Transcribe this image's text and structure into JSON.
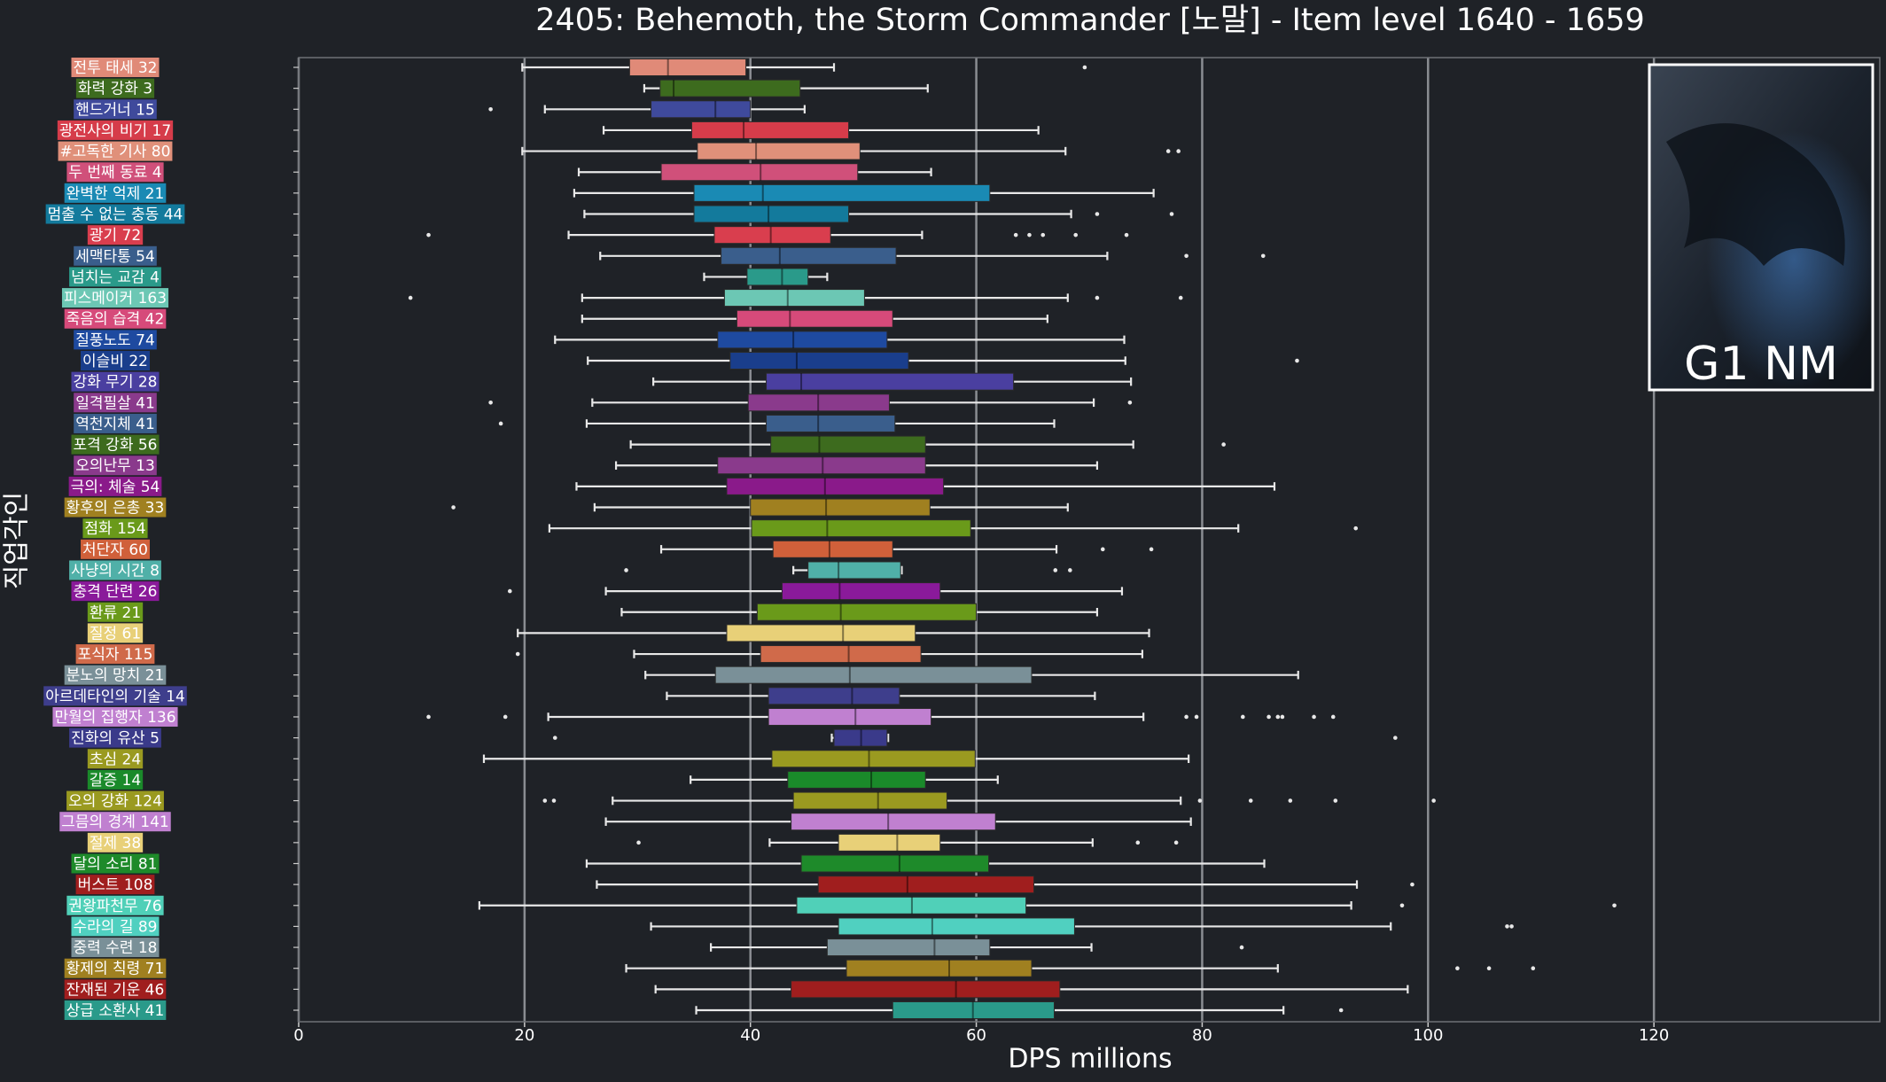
{
  "chart_data": {
    "type": "box",
    "title": "2405: Behemoth, the Storm Commander [노말] - Item level 1640 - 1659",
    "xlabel": "DPS millions",
    "ylabel": "직업각인",
    "badge": "G1 NM",
    "xlim": [
      0,
      140
    ],
    "xticks": [
      0,
      20,
      40,
      60,
      80,
      100,
      120
    ],
    "grid": true,
    "boxes": [
      {
        "name": "전투 태세 32",
        "color": "#e08a78",
        "whislo": 19.8,
        "q1": 29.3,
        "med": 32.7,
        "q3": 39.6,
        "whishi": 47.4,
        "fliers": [
          69.6
        ]
      },
      {
        "name": "화력 강화 3",
        "color": "#3d6b1e",
        "whislo": 30.6,
        "q1": 32.0,
        "med": 33.2,
        "q3": 44.4,
        "whishi": 55.7,
        "fliers": []
      },
      {
        "name": "핸드거너 15",
        "color": "#3f4a9c",
        "whislo": 21.8,
        "q1": 31.2,
        "med": 36.9,
        "q3": 40.0,
        "whishi": 44.8,
        "fliers": [
          17.0
        ]
      },
      {
        "name": "광전사의 비기 17",
        "color": "#d63c4a",
        "whislo": 27.0,
        "q1": 34.8,
        "med": 39.4,
        "q3": 48.7,
        "whishi": 65.5,
        "fliers": []
      },
      {
        "name": "#고독한 기사 80",
        "color": "#e0907a",
        "whislo": 19.8,
        "q1": 35.3,
        "med": 40.5,
        "q3": 49.7,
        "whishi": 67.9,
        "fliers": [
          77.0,
          77.9
        ]
      },
      {
        "name": "두 번째 동료 4",
        "color": "#d0507a",
        "whislo": 24.8,
        "q1": 32.1,
        "med": 40.9,
        "q3": 49.5,
        "whishi": 56.0,
        "fliers": []
      },
      {
        "name": "완벽한 억제 21",
        "color": "#1a8ab4",
        "whislo": 24.4,
        "q1": 35.0,
        "med": 41.1,
        "q3": 61.2,
        "whishi": 75.7,
        "fliers": []
      },
      {
        "name": "멈출 수 없는 충동 44",
        "color": "#137a9c",
        "whislo": 25.3,
        "q1": 35.0,
        "med": 41.6,
        "q3": 48.7,
        "whishi": 68.4,
        "fliers": [
          70.7,
          77.3
        ]
      },
      {
        "name": "광기 72",
        "color": "#d93e4e",
        "whislo": 23.9,
        "q1": 36.8,
        "med": 41.8,
        "q3": 47.1,
        "whishi": 55.2,
        "fliers": [
          11.5,
          63.5,
          64.7,
          65.9,
          68.8,
          73.3
        ]
      },
      {
        "name": "세맥타통 54",
        "color": "#3a5e8c",
        "whislo": 26.7,
        "q1": 37.4,
        "med": 42.6,
        "q3": 52.9,
        "whishi": 71.6,
        "fliers": [
          78.6,
          85.4
        ]
      },
      {
        "name": "넘치는 교감 4",
        "color": "#2a9a8a",
        "whislo": 35.9,
        "q1": 39.7,
        "med": 42.8,
        "q3": 45.1,
        "whishi": 46.8,
        "fliers": []
      },
      {
        "name": "피스메이커 163",
        "color": "#6cc7b4",
        "whislo": 25.1,
        "q1": 37.7,
        "med": 43.3,
        "q3": 50.1,
        "whishi": 68.1,
        "fliers": [
          9.9,
          70.7,
          78.1
        ]
      },
      {
        "name": "죽음의 습격 42",
        "color": "#d64a7a",
        "whislo": 25.1,
        "q1": 38.8,
        "med": 43.5,
        "q3": 52.6,
        "whishi": 66.3,
        "fliers": []
      },
      {
        "name": "질풍노도 74",
        "color": "#1e4aa0",
        "whislo": 22.7,
        "q1": 37.1,
        "med": 43.8,
        "q3": 52.1,
        "whishi": 73.1,
        "fliers": []
      },
      {
        "name": "이슬비 22",
        "color": "#1a3e8c",
        "whislo": 25.6,
        "q1": 38.2,
        "med": 44.1,
        "q3": 54.0,
        "whishi": 73.2,
        "fliers": [
          88.4
        ]
      },
      {
        "name": "강화 무기 28",
        "color": "#4a3fa0",
        "whislo": 31.4,
        "q1": 41.4,
        "med": 44.5,
        "q3": 63.3,
        "whishi": 73.7,
        "fliers": []
      },
      {
        "name": "일격필살 41",
        "color": "#8a3a8c",
        "whislo": 26.0,
        "q1": 39.8,
        "med": 46.0,
        "q3": 52.3,
        "whishi": 70.4,
        "fliers": [
          17.0,
          73.6
        ]
      },
      {
        "name": "역천지체 41",
        "color": "#3a5e8c",
        "whislo": 25.5,
        "q1": 41.4,
        "med": 46.0,
        "q3": 52.8,
        "whishi": 66.9,
        "fliers": [
          17.9
        ]
      },
      {
        "name": "포격 강화 56",
        "color": "#3d6b1e",
        "whislo": 29.4,
        "q1": 41.8,
        "med": 46.1,
        "q3": 55.5,
        "whishi": 73.9,
        "fliers": [
          81.9
        ]
      },
      {
        "name": "오의난무 13",
        "color": "#8a3a8c",
        "whislo": 28.1,
        "q1": 37.1,
        "med": 46.4,
        "q3": 55.5,
        "whishi": 70.7,
        "fliers": []
      },
      {
        "name": "극의: 체술 54",
        "color": "#8a1a8a",
        "whislo": 24.6,
        "q1": 37.9,
        "med": 46.6,
        "q3": 57.1,
        "whishi": 86.4,
        "fliers": []
      },
      {
        "name": "황후의 은총 33",
        "color": "#a08020",
        "whislo": 26.2,
        "q1": 40.0,
        "med": 46.7,
        "q3": 55.9,
        "whishi": 68.1,
        "fliers": [
          13.7
        ]
      },
      {
        "name": "점화 154",
        "color": "#6a9a1a",
        "whislo": 22.2,
        "q1": 40.1,
        "med": 46.8,
        "q3": 59.5,
        "whishi": 83.2,
        "fliers": [
          93.6
        ]
      },
      {
        "name": "처단자 60",
        "color": "#d0603a",
        "whislo": 32.1,
        "q1": 42.0,
        "med": 47.0,
        "q3": 52.6,
        "whishi": 67.1,
        "fliers": [
          71.2,
          75.5
        ]
      },
      {
        "name": "사냥의 시간 8",
        "color": "#50b0a8",
        "whislo": 43.8,
        "q1": 45.1,
        "med": 47.8,
        "q3": 53.3,
        "whishi": 53.4,
        "fliers": [
          29.0,
          67.0,
          68.3
        ]
      },
      {
        "name": "충격 단련 26",
        "color": "#8a1a9a",
        "whislo": 27.2,
        "q1": 42.8,
        "med": 47.9,
        "q3": 56.8,
        "whishi": 72.9,
        "fliers": [
          18.7
        ]
      },
      {
        "name": "환류 21",
        "color": "#6a9a1a",
        "whislo": 28.6,
        "q1": 40.6,
        "med": 48.0,
        "q3": 60.0,
        "whishi": 70.7,
        "fliers": []
      },
      {
        "name": "질정 61",
        "color": "#e8d078",
        "whislo": 19.4,
        "q1": 37.9,
        "med": 48.2,
        "q3": 54.6,
        "whishi": 75.3,
        "fliers": []
      },
      {
        "name": "포식자 115",
        "color": "#d06a4a",
        "whislo": 29.7,
        "q1": 40.9,
        "med": 48.7,
        "q3": 55.1,
        "whishi": 74.7,
        "fliers": [
          19.4
        ]
      },
      {
        "name": "분노의 망치 21",
        "color": "#7a9098",
        "whislo": 30.7,
        "q1": 36.9,
        "med": 48.8,
        "q3": 64.9,
        "whishi": 88.5,
        "fliers": []
      },
      {
        "name": "아르데타인의 기술 14",
        "color": "#3e3e8c",
        "whislo": 32.6,
        "q1": 41.6,
        "med": 49.0,
        "q3": 53.2,
        "whishi": 70.5,
        "fliers": []
      },
      {
        "name": "만월의 집행자 136",
        "color": "#c080d0",
        "whislo": 22.1,
        "q1": 41.6,
        "med": 49.3,
        "q3": 56.0,
        "whishi": 74.8,
        "fliers": [
          11.5,
          18.3,
          78.6,
          79.5,
          83.6,
          85.9,
          86.7,
          87.1,
          89.9,
          91.6
        ]
      },
      {
        "name": "진화의 유산 5",
        "color": "#3a3a8a",
        "whislo": 47.2,
        "q1": 47.4,
        "med": 49.8,
        "q3": 52.1,
        "whishi": 52.2,
        "fliers": [
          22.7,
          97.1
        ]
      },
      {
        "name": "초심 24",
        "color": "#9a9a20",
        "whislo": 16.4,
        "q1": 41.9,
        "med": 50.5,
        "q3": 59.9,
        "whishi": 78.8,
        "fliers": []
      },
      {
        "name": "갈증 14",
        "color": "#1a8a2a",
        "whislo": 34.7,
        "q1": 43.3,
        "med": 50.7,
        "q3": 55.5,
        "whishi": 61.9,
        "fliers": []
      },
      {
        "name": "오의 강화 124",
        "color": "#9a9a20",
        "whislo": 27.8,
        "q1": 43.8,
        "med": 51.3,
        "q3": 57.4,
        "whishi": 78.1,
        "fliers": [
          21.8,
          22.6,
          79.8,
          84.3,
          87.8,
          91.8,
          100.5
        ]
      },
      {
        "name": "그믐의 경계 141",
        "color": "#c080d0",
        "whislo": 27.2,
        "q1": 43.6,
        "med": 52.2,
        "q3": 61.7,
        "whishi": 79.0,
        "fliers": []
      },
      {
        "name": "절제 38",
        "color": "#e8d078",
        "whislo": 41.7,
        "q1": 47.8,
        "med": 53.0,
        "q3": 56.8,
        "whishi": 70.3,
        "fliers": [
          30.1,
          74.3,
          77.7
        ]
      },
      {
        "name": "달의 소리 81",
        "color": "#1e8a2a",
        "whislo": 25.5,
        "q1": 44.5,
        "med": 53.2,
        "q3": 61.1,
        "whishi": 85.5,
        "fliers": []
      },
      {
        "name": "버스트 108",
        "color": "#a01e1e",
        "whislo": 26.4,
        "q1": 46.0,
        "med": 53.9,
        "q3": 65.1,
        "whishi": 93.7,
        "fliers": [
          98.6
        ]
      },
      {
        "name": "권왕파천무 76",
        "color": "#50d0b8",
        "whislo": 16.0,
        "q1": 44.1,
        "med": 54.3,
        "q3": 64.4,
        "whishi": 93.2,
        "fliers": [
          97.7,
          116.5
        ]
      },
      {
        "name": "수라의 길 89",
        "color": "#50d0c0",
        "whislo": 31.2,
        "q1": 47.8,
        "med": 56.1,
        "q3": 68.7,
        "whishi": 96.7,
        "fliers": [
          107.0,
          107.4
        ]
      },
      {
        "name": "중력 수련 18",
        "color": "#7a9098",
        "whislo": 36.5,
        "q1": 46.8,
        "med": 56.3,
        "q3": 61.2,
        "whishi": 70.2,
        "fliers": [
          83.5
        ]
      },
      {
        "name": "황제의 칙령 71",
        "color": "#a08020",
        "whislo": 29.0,
        "q1": 48.5,
        "med": 57.6,
        "q3": 64.9,
        "whishi": 86.7,
        "fliers": [
          102.6,
          105.4,
          109.3
        ]
      },
      {
        "name": "잔재된 기운 46",
        "color": "#a01e1e",
        "whislo": 31.6,
        "q1": 43.6,
        "med": 58.2,
        "q3": 67.4,
        "whishi": 98.2,
        "fliers": []
      },
      {
        "name": "상급 소환사 41",
        "color": "#2a9a8a",
        "whislo": 35.2,
        "q1": 52.6,
        "med": 59.7,
        "q3": 66.9,
        "whishi": 87.2,
        "fliers": [
          92.3
        ]
      }
    ]
  }
}
